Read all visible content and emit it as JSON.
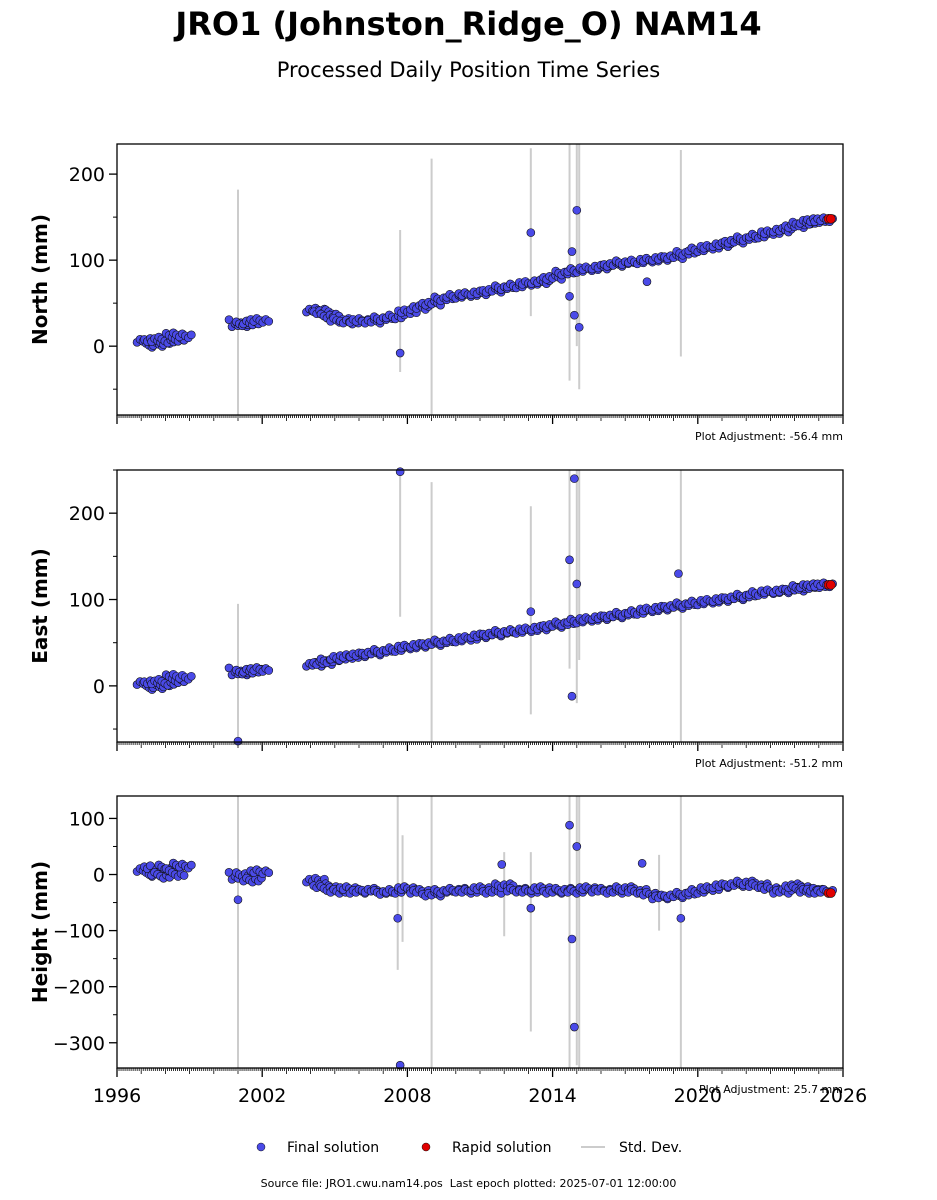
{
  "title": "JRO1 (Johnston_Ridge_O) NAM14",
  "subtitle": "Processed Daily Position Time Series",
  "footer": {
    "source_label": "Source file:",
    "source_file": "JRO1.cwu.nam14.pos",
    "last_epoch_label": "Last epoch plotted:",
    "last_epoch": "2025-07-01 12:00:00"
  },
  "legend": {
    "placement": "bottom-center",
    "items": [
      {
        "label": "Final solution",
        "color": "#4a4ae8",
        "marker": "circle"
      },
      {
        "label": "Rapid solution",
        "color": "#e00000",
        "marker": "circle"
      },
      {
        "label": "Std. Dev.",
        "color": "#cccccc",
        "marker": "line"
      }
    ]
  },
  "chart_data": [
    {
      "type": "scatter",
      "ylabel": "North (mm)",
      "ylim": [
        -80,
        235
      ],
      "xlim": [
        1996,
        2026
      ],
      "yticks": [
        0,
        100,
        200
      ],
      "adjustment": "Plot Adjustment: -56.4 mm",
      "series": [
        {
          "name": "Final solution",
          "color": "#4a4ae8",
          "x": [
            1997.2,
            1997.5,
            1997.8,
            1998.1,
            1998.4,
            1998.7,
            2001.0,
            2001.3,
            2001.6,
            2001.9,
            2004.2,
            2004.5,
            2004.8,
            2005.2,
            2005.6,
            2006.0,
            2006.5,
            2007.0,
            2007.5,
            2008.0,
            2008.5,
            2009.0,
            2009.5,
            2010.0,
            2010.5,
            2011.0,
            2011.5,
            2012.0,
            2012.5,
            2013.0,
            2013.5,
            2014.0,
            2014.5,
            2015.0,
            2015.5,
            2016.0,
            2016.5,
            2017.0,
            2017.5,
            2018.0,
            2018.5,
            2019.0,
            2019.5,
            2020.0,
            2020.5,
            2021.0,
            2021.5,
            2022.0,
            2022.5,
            2023.0,
            2023.5,
            2024.0,
            2024.3,
            2024.6,
            2024.9,
            2025.2,
            2007.7,
            2013.1,
            2014.8,
            2015.0,
            2014.9,
            2015.1,
            2014.7,
            2017.9
          ],
          "y": [
            1,
            2,
            3,
            6,
            8,
            12,
            25,
            26,
            27,
            30,
            42,
            40,
            35,
            30,
            28,
            30,
            29,
            32,
            34,
            40,
            45,
            50,
            55,
            58,
            60,
            62,
            65,
            68,
            70,
            73,
            75,
            80,
            85,
            88,
            90,
            92,
            95,
            97,
            98,
            100,
            102,
            104,
            108,
            112,
            115,
            118,
            122,
            125,
            128,
            132,
            135,
            140,
            142,
            144,
            146,
            147,
            -8,
            132,
            110,
            158,
            36,
            22,
            58,
            75
          ]
        },
        {
          "name": "Rapid solution",
          "color": "#e00000",
          "x": [
            2025.4,
            2025.5
          ],
          "y": [
            148,
            148
          ]
        }
      ],
      "stddev_bars": [
        [
          2001.0,
          -80,
          182
        ],
        [
          2007.7,
          -30,
          135
        ],
        [
          2009.0,
          -80,
          218
        ],
        [
          2013.1,
          35,
          230
        ],
        [
          2014.7,
          -40,
          235
        ],
        [
          2015.0,
          0,
          235
        ],
        [
          2015.1,
          -50,
          235
        ],
        [
          2019.3,
          -12,
          228
        ]
      ]
    },
    {
      "type": "scatter",
      "ylabel": "East (mm)",
      "ylim": [
        -65,
        250
      ],
      "xlim": [
        1996,
        2026
      ],
      "yticks": [
        0,
        100,
        200
      ],
      "adjustment": "Plot Adjustment: -51.2 mm",
      "series": [
        {
          "name": "Final solution",
          "color": "#4a4ae8",
          "x": [
            1997.2,
            1997.5,
            1997.8,
            1998.1,
            1998.4,
            1998.7,
            2001.0,
            2001.3,
            2001.6,
            2001.9,
            2004.2,
            2004.5,
            2004.8,
            2005.2,
            2005.6,
            2006.0,
            2006.5,
            2007.0,
            2007.5,
            2008.0,
            2008.5,
            2009.0,
            2009.5,
            2010.0,
            2010.5,
            2011.0,
            2011.5,
            2012.0,
            2012.5,
            2013.0,
            2013.5,
            2014.0,
            2014.5,
            2015.0,
            2015.5,
            2016.0,
            2016.5,
            2017.0,
            2017.5,
            2018.0,
            2018.5,
            2019.0,
            2019.5,
            2020.0,
            2020.5,
            2021.0,
            2021.5,
            2022.0,
            2022.5,
            2023.0,
            2023.5,
            2024.0,
            2024.3,
            2024.6,
            2024.9,
            2025.2,
            2007.7,
            2013.1,
            2014.7,
            2014.9,
            2015.0,
            2014.8,
            2019.2,
            2001.0
          ],
          "y": [
            -2,
            -1,
            0,
            3,
            6,
            10,
            15,
            16,
            17,
            19,
            25,
            27,
            29,
            32,
            34,
            36,
            38,
            40,
            42,
            45,
            47,
            49,
            51,
            53,
            55,
            58,
            60,
            62,
            63,
            65,
            67,
            70,
            72,
            75,
            77,
            79,
            81,
            83,
            85,
            88,
            90,
            92,
            94,
            96,
            98,
            100,
            102,
            104,
            107,
            109,
            110,
            112,
            114,
            115,
            116,
            117,
            248,
            86,
            146,
            240,
            118,
            -12,
            130,
            -64
          ]
        },
        {
          "name": "Rapid solution",
          "color": "#e00000",
          "x": [
            2025.4,
            2025.5
          ],
          "y": [
            117,
            117
          ]
        }
      ],
      "stddev_bars": [
        [
          2001.0,
          -65,
          95
        ],
        [
          2007.7,
          80,
          250
        ],
        [
          2009.0,
          -65,
          236
        ],
        [
          2013.1,
          -33,
          208
        ],
        [
          2014.7,
          20,
          250
        ],
        [
          2015.0,
          -20,
          250
        ],
        [
          2015.1,
          30,
          250
        ],
        [
          2019.3,
          -65,
          250
        ]
      ]
    },
    {
      "type": "scatter",
      "ylabel": "Height (mm)",
      "ylim": [
        -345,
        140
      ],
      "xlim": [
        1996,
        2026
      ],
      "yticks": [
        100,
        0,
        -100,
        -200,
        -300
      ],
      "ytick_labels": [
        "100",
        "0",
        "−100",
        "−200",
        "−300"
      ],
      "xticks": [
        1996,
        2002,
        2008,
        2014,
        2020,
        2026
      ],
      "adjustment": "Plot Adjustment: 25.7 mm",
      "series": [
        {
          "name": "Final solution",
          "color": "#4a4ae8",
          "x": [
            1997.2,
            1997.5,
            1997.8,
            1998.1,
            1998.4,
            1998.7,
            2001.0,
            2001.3,
            2001.6,
            2001.9,
            2004.2,
            2004.5,
            2004.8,
            2005.2,
            2005.6,
            2006.0,
            2006.5,
            2007.0,
            2007.5,
            2008.0,
            2008.5,
            2009.0,
            2009.5,
            2010.0,
            2010.5,
            2011.0,
            2011.5,
            2012.0,
            2012.5,
            2013.0,
            2013.5,
            2014.0,
            2014.5,
            2015.0,
            2015.5,
            2016.0,
            2016.5,
            2017.0,
            2017.5,
            2018.0,
            2018.5,
            2019.0,
            2019.5,
            2020.0,
            2020.5,
            2021.0,
            2021.5,
            2022.0,
            2022.5,
            2023.0,
            2023.5,
            2024.0,
            2024.3,
            2024.6,
            2024.9,
            2025.2,
            2007.7,
            2014.7,
            2014.9,
            2015.0,
            2014.8,
            2001.0,
            2013.1,
            2019.3,
            2017.7,
            2011.9,
            2007.6
          ],
          "y": [
            0,
            5,
            -5,
            10,
            0,
            15,
            -5,
            0,
            -10,
            5,
            -10,
            -20,
            -25,
            -30,
            -25,
            -30,
            -28,
            -32,
            -30,
            -25,
            -30,
            -35,
            -30,
            -28,
            -30,
            -25,
            -30,
            -20,
            -28,
            -30,
            -25,
            -30,
            -28,
            -30,
            -25,
            -28,
            -30,
            -25,
            -30,
            -35,
            -40,
            -38,
            -35,
            -30,
            -25,
            -20,
            -18,
            -15,
            -20,
            -25,
            -30,
            -20,
            -25,
            -30,
            -28,
            -30,
            -340,
            88,
            -272,
            50,
            -115,
            -45,
            -60,
            -78,
            20,
            18,
            -78
          ]
        },
        {
          "name": "Rapid solution",
          "color": "#e00000",
          "x": [
            2025.4,
            2025.5
          ],
          "y": [
            -33,
            -33
          ]
        }
      ],
      "stddev_bars": [
        [
          2001.0,
          -345,
          140
        ],
        [
          2007.6,
          -170,
          140
        ],
        [
          2007.8,
          -120,
          70
        ],
        [
          2009.0,
          -345,
          140
        ],
        [
          2012.0,
          -110,
          40
        ],
        [
          2013.1,
          -280,
          40
        ],
        [
          2014.7,
          -345,
          140
        ],
        [
          2015.0,
          -340,
          140
        ],
        [
          2015.1,
          -345,
          140
        ],
        [
          2018.4,
          -100,
          35
        ],
        [
          2019.3,
          -345,
          140
        ]
      ]
    }
  ]
}
